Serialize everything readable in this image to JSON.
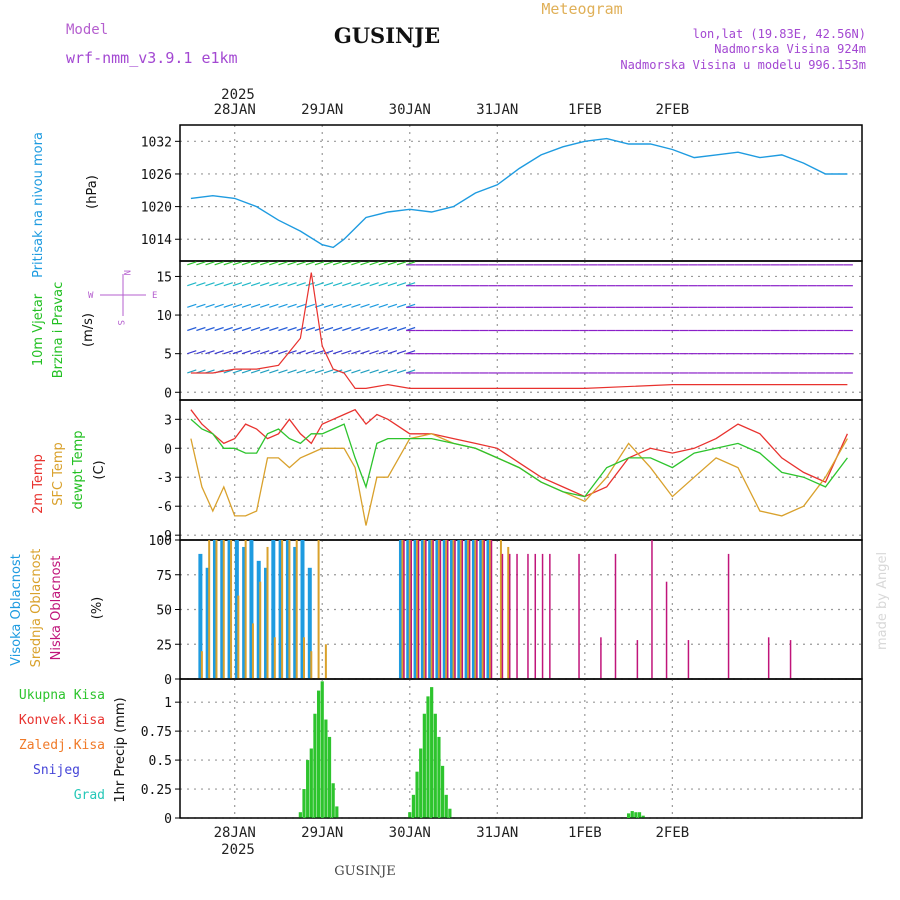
{
  "header": {
    "model_label": "Model",
    "model_name": "wrf-nmm_v3.9.1 e1km",
    "title": "GUSINJE",
    "product": "Meteogram",
    "coords": "lon,lat (19.83E, 42.56N)",
    "elevation": "Nadmorska Visina 924m",
    "model_elevation": "Nadmorska Visina u modelu 996.153m",
    "footer_title": "GUSINJE",
    "watermark": "made by Angel"
  },
  "time_axis": {
    "year": "2025",
    "ticks": [
      "28JAN",
      "29JAN",
      "30JAN",
      "31JAN",
      "1FEB",
      "2FEB"
    ]
  },
  "colors": {
    "pressure": "#1e9be0",
    "t2m": "#e8322e",
    "sfc": "#d9a12c",
    "dewpt": "#2dc42d",
    "cloud_high": "#1e9be0",
    "cloud_mid": "#d9a12c",
    "cloud_low": "#c0157a",
    "precip_total": "#2dc42d",
    "precip_conv": "#e8322e",
    "precip_frz": "#f07a28",
    "snow": "#4545d8",
    "grad": "#25c8b8",
    "wind_purple": "#8a20c8"
  },
  "panels": {
    "pressure": {
      "label": "Pritisak na nivou mora",
      "unit": "(hPa)"
    },
    "wind": {
      "label1": "10m Vjetar",
      "label2": "Brzina i Pravac",
      "unit": "(m/s)",
      "compass_n": "N",
      "compass_w": "W",
      "compass_e": "E",
      "compass_s": "S"
    },
    "temp": {
      "label_t2m": "2m Temp",
      "label_sfc": "SFC Temp",
      "label_dew": "dewpt Temp",
      "unit": "(C)"
    },
    "cloud": {
      "label_high": "Visoka Oblacnost",
      "label_mid": "Srednja Oblacnost",
      "label_low": "Niska Oblacnost",
      "unit": "(%)"
    },
    "precip": {
      "legend": [
        "Ukupna Kisa",
        "Konvek.Kisa",
        "Zaledj.Kisa",
        "Snijeg",
        "Grad"
      ],
      "unit": "1hr Precip (mm)"
    }
  },
  "chart_data": [
    {
      "type": "line",
      "title": "",
      "ylabel": "Pritisak na nivou mora (hPa)",
      "ylim": [
        1010,
        1035
      ],
      "yticks": [
        1014,
        1020,
        1026,
        1032
      ],
      "x_hours_from_28JAN_00": [
        -12,
        -6,
        0,
        6,
        12,
        18,
        24,
        27,
        30,
        36,
        42,
        48,
        54,
        60,
        66,
        72,
        78,
        84,
        90,
        96,
        102,
        108,
        114,
        120,
        126,
        132,
        138,
        144,
        150,
        156,
        162,
        168
      ],
      "series": [
        {
          "name": "Pritisak na nivou mora",
          "values": [
            1021.5,
            1022,
            1021.5,
            1020,
            1017.5,
            1015.5,
            1013,
            1012.5,
            1014,
            1018,
            1019,
            1019.5,
            1019,
            1020,
            1022.5,
            1024,
            1027,
            1029.5,
            1031,
            1032,
            1032.5,
            1031.5,
            1031.5,
            1030.5,
            1029,
            1029.5,
            1030,
            1029,
            1029.5,
            1028,
            1026,
            1026
          ]
        }
      ]
    },
    {
      "type": "line",
      "title": "",
      "ylabel": "10m Vjetar Brzina i Pravac (m/s)",
      "ylim": [
        -1,
        17
      ],
      "yticks": [
        0,
        5,
        10,
        15
      ],
      "x_hours_from_28JAN_00": [
        -12,
        -6,
        0,
        6,
        12,
        18,
        21,
        24,
        27,
        30,
        33,
        36,
        42,
        48,
        60,
        72,
        96,
        120,
        144,
        168
      ],
      "series": [
        {
          "name": "10m Vjetar",
          "values": [
            2.5,
            2.5,
            3,
            3,
            3.5,
            7,
            15.5,
            6,
            3,
            2.5,
            0.5,
            0.5,
            1,
            0.5,
            0.5,
            0.5,
            0.5,
            1,
            1,
            1
          ]
        }
      ]
    },
    {
      "type": "line",
      "title": "",
      "ylabel": "(C)",
      "ylim": [
        -9.5,
        5
      ],
      "yticks": [
        -9,
        -6,
        -3,
        0,
        3
      ],
      "x_hours_from_28JAN_00": [
        -12,
        -9,
        -6,
        -3,
        0,
        3,
        6,
        9,
        12,
        15,
        18,
        21,
        24,
        27,
        30,
        33,
        36,
        39,
        42,
        48,
        54,
        60,
        66,
        72,
        78,
        84,
        90,
        96,
        102,
        108,
        114,
        120,
        126,
        132,
        138,
        144,
        150,
        156,
        162,
        168
      ],
      "series": [
        {
          "name": "2m Temp",
          "values": [
            4,
            2.5,
            1.5,
            0.5,
            1,
            2.5,
            2,
            1,
            1.5,
            3,
            1.5,
            0.5,
            2.5,
            3,
            3.5,
            4,
            2.5,
            3.5,
            3,
            1.5,
            1.5,
            1,
            0.5,
            0,
            -1.5,
            -3,
            -4,
            -5,
            -4,
            -1,
            0,
            -0.5,
            0,
            1,
            2.5,
            1.5,
            -1,
            -2.5,
            -3.5,
            1.5
          ]
        },
        {
          "name": "SFC Temp",
          "values": [
            1,
            -4,
            -6.5,
            -4,
            -7,
            -7,
            -6.5,
            -1,
            -1,
            -2,
            -1,
            -0.5,
            0,
            0,
            0,
            -2,
            -8,
            -3,
            -3,
            1,
            1.5,
            0.5,
            0,
            -1,
            -2,
            -3.5,
            -4.5,
            -5.5,
            -3,
            0.5,
            -2,
            -5,
            -3,
            -1,
            -2,
            -6.5,
            -7,
            -6,
            -3,
            1
          ]
        },
        {
          "name": "dewpt Temp",
          "values": [
            3,
            2,
            1.5,
            0,
            0,
            -0.5,
            -0.5,
            1.5,
            2,
            1,
            0.5,
            1.5,
            1.5,
            2,
            2.5,
            -1,
            -4,
            0.5,
            1,
            1,
            1,
            0.5,
            0,
            -1,
            -2,
            -3.5,
            -4.5,
            -5,
            -2,
            -1,
            -1,
            -2,
            -0.5,
            0,
            0.5,
            -0.5,
            -2.5,
            -3,
            -4,
            -1
          ]
        }
      ]
    },
    {
      "type": "bar",
      "title": "",
      "ylabel": "(%)",
      "ylim": [
        0,
        100
      ],
      "yticks": [
        0,
        25,
        50,
        75,
        100
      ],
      "x_hours_from_28JAN_00": [
        -9,
        -7,
        -5,
        -3,
        -1,
        1,
        3,
        5,
        7,
        9,
        11,
        13,
        15,
        17,
        19,
        21,
        23,
        25,
        46,
        48,
        50,
        52,
        54,
        56,
        58,
        60,
        62,
        64,
        66,
        68,
        70,
        73,
        75,
        77,
        80,
        82,
        84,
        86,
        94,
        100,
        104,
        110,
        114,
        118,
        124,
        135,
        146,
        152
      ],
      "series": [
        {
          "name": "Visoka Oblacnost",
          "values": [
            90,
            80,
            100,
            100,
            100,
            100,
            95,
            100,
            85,
            80,
            100,
            100,
            100,
            95,
            100,
            80,
            0,
            0,
            100,
            100,
            100,
            100,
            100,
            100,
            100,
            100,
            100,
            100,
            100,
            100,
            100,
            0,
            0,
            0,
            0,
            0,
            0,
            0,
            0,
            0,
            0,
            0,
            0,
            0,
            0,
            0,
            0,
            0
          ]
        },
        {
          "name": "Srednja Oblacnost",
          "values": [
            20,
            100,
            100,
            100,
            100,
            60,
            100,
            40,
            70,
            95,
            30,
            100,
            100,
            100,
            30,
            20,
            100,
            25,
            100,
            100,
            100,
            100,
            100,
            100,
            100,
            100,
            100,
            100,
            100,
            100,
            100,
            100,
            95,
            0,
            0,
            0,
            0,
            0,
            0,
            0,
            0,
            0,
            0,
            0,
            0,
            0,
            0,
            0
          ]
        },
        {
          "name": "Niska Oblacnost",
          "values": [
            0,
            0,
            0,
            0,
            0,
            0,
            0,
            0,
            0,
            0,
            0,
            0,
            0,
            0,
            0,
            0,
            0,
            0,
            100,
            100,
            100,
            100,
            100,
            100,
            100,
            100,
            100,
            100,
            100,
            100,
            100,
            90,
            90,
            90,
            90,
            90,
            90,
            90,
            90,
            30,
            90,
            28,
            100,
            70,
            28,
            90,
            30,
            28
          ]
        }
      ]
    },
    {
      "type": "bar",
      "title": "",
      "ylabel": "1hr Precip (mm)",
      "ylim": [
        0,
        1.2
      ],
      "yticks": [
        0,
        0.25,
        0.5,
        0.75,
        1
      ],
      "x_hours_from_28JAN_00": [
        18,
        19,
        20,
        21,
        22,
        23,
        24,
        25,
        26,
        27,
        28,
        48,
        49,
        50,
        51,
        52,
        53,
        54,
        55,
        56,
        57,
        58,
        59,
        108,
        109,
        110,
        111,
        112
      ],
      "series": [
        {
          "name": "Ukupna Kisa",
          "values": [
            0.05,
            0.25,
            0.5,
            0.6,
            0.9,
            1.1,
            1.18,
            0.85,
            0.7,
            0.3,
            0.1,
            0.05,
            0.2,
            0.4,
            0.6,
            0.9,
            1.05,
            1.13,
            0.9,
            0.7,
            0.45,
            0.2,
            0.08,
            0.04,
            0.06,
            0.05,
            0.05,
            0.02
          ]
        }
      ]
    }
  ]
}
